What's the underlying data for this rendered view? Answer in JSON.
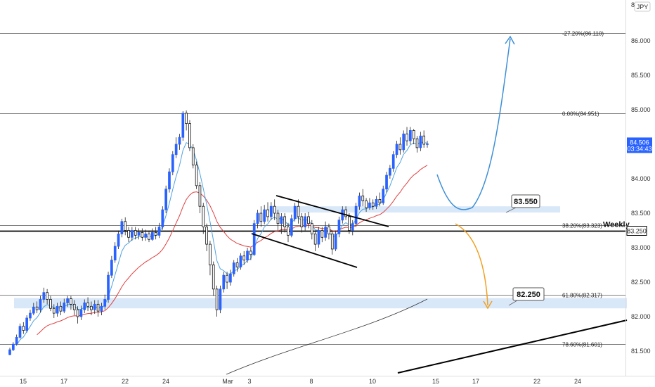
{
  "chart_data": {
    "type": "line",
    "currency": "JPY",
    "y_axis": {
      "min": 81.3,
      "max": 86.5,
      "ticks": [
        "81.500",
        "82.000",
        "82.500",
        "83.000",
        "83.500",
        "84.000",
        "84.500",
        "85.000",
        "85.500",
        "86.000"
      ]
    },
    "x_axis": {
      "ticks": [
        "15",
        "17",
        "22",
        "24",
        "Mar",
        "3",
        "8",
        "10",
        "15",
        "17",
        "22",
        "24"
      ]
    },
    "price_label": {
      "value": "84.506",
      "countdown": "03:34:43"
    },
    "fib_levels": [
      {
        "label": "-27.20%(86.110)",
        "price": 86.11
      },
      {
        "label": "0.00%(84.951)",
        "price": 84.951
      },
      {
        "label": "38.20%(83.323)",
        "price": 83.323
      },
      {
        "label": "61.80%(82.317)",
        "price": 82.317
      },
      {
        "label": "78.60%(81.601)",
        "price": 81.601
      }
    ],
    "weekly_level": {
      "label": "Weekly",
      "price": 83.25,
      "value_label": "83.250"
    },
    "zones": [
      {
        "label": "83.550",
        "price_low": 83.51,
        "price_high": 83.6
      },
      {
        "label": "82.250",
        "price_low": 82.12,
        "price_high": 82.27
      }
    ],
    "colors": {
      "up": "#2962ff",
      "down": "#111111",
      "ema_fast": "#4fa3e0",
      "ema_slow": "#e04040",
      "zone": "#cfe2f8",
      "bull_path": "#3d8fd6",
      "bear_path": "#f0a020",
      "price_label_bg": "#2962ff"
    },
    "candles": [
      [
        81.45,
        81.52,
        81.44,
        81.55
      ],
      [
        81.52,
        81.6,
        81.5,
        81.63
      ],
      [
        81.6,
        81.7,
        81.58,
        81.74
      ],
      [
        81.7,
        81.86,
        81.68,
        81.9
      ],
      [
        81.86,
        81.8,
        81.75,
        81.92
      ],
      [
        81.8,
        81.98,
        81.77,
        82.02
      ],
      [
        81.98,
        82.05,
        81.94,
        82.1
      ],
      [
        82.05,
        82.14,
        82.02,
        82.2
      ],
      [
        82.14,
        82.1,
        82.05,
        82.22
      ],
      [
        82.1,
        82.25,
        82.06,
        82.3
      ],
      [
        82.25,
        82.35,
        82.2,
        82.42
      ],
      [
        82.35,
        82.25,
        82.18,
        82.4
      ],
      [
        82.25,
        82.12,
        82.08,
        82.3
      ],
      [
        82.12,
        82.05,
        81.98,
        82.18
      ],
      [
        82.05,
        82.15,
        82.0,
        82.2
      ],
      [
        82.15,
        82.08,
        82.02,
        82.22
      ],
      [
        82.08,
        82.2,
        82.05,
        82.26
      ],
      [
        82.2,
        82.26,
        82.14,
        82.3
      ],
      [
        82.26,
        82.18,
        82.1,
        82.3
      ],
      [
        82.18,
        82.1,
        82.02,
        82.24
      ],
      [
        82.1,
        82.0,
        81.9,
        82.15
      ],
      [
        82.0,
        82.1,
        81.95,
        82.16
      ],
      [
        82.1,
        82.2,
        82.05,
        82.25
      ],
      [
        82.2,
        82.15,
        82.08,
        82.28
      ],
      [
        82.15,
        82.1,
        82.02,
        82.22
      ],
      [
        82.1,
        82.18,
        82.04,
        82.24
      ],
      [
        82.18,
        82.08,
        82.0,
        82.24
      ],
      [
        82.08,
        82.15,
        82.02,
        82.2
      ],
      [
        82.15,
        82.25,
        82.1,
        82.32
      ],
      [
        82.25,
        82.6,
        82.2,
        82.65
      ],
      [
        82.6,
        82.82,
        82.56,
        82.88
      ],
      [
        82.82,
        83.02,
        82.78,
        83.08
      ],
      [
        83.02,
        83.2,
        82.98,
        83.25
      ],
      [
        83.2,
        83.38,
        83.15,
        83.42
      ],
      [
        83.38,
        83.25,
        83.18,
        83.44
      ],
      [
        83.25,
        83.15,
        83.08,
        83.3
      ],
      [
        83.15,
        83.25,
        83.1,
        83.3
      ],
      [
        83.25,
        83.18,
        83.12,
        83.3
      ],
      [
        83.18,
        83.22,
        83.12,
        83.28
      ],
      [
        83.22,
        83.15,
        83.1,
        83.28
      ],
      [
        83.15,
        83.2,
        83.1,
        83.26
      ],
      [
        83.2,
        83.12,
        83.08,
        83.25
      ],
      [
        83.12,
        83.22,
        83.1,
        83.28
      ],
      [
        83.22,
        83.18,
        83.12,
        83.3
      ],
      [
        83.18,
        83.3,
        83.14,
        83.36
      ],
      [
        83.3,
        83.55,
        83.26,
        83.6
      ],
      [
        83.55,
        83.85,
        83.5,
        83.9
      ],
      [
        83.85,
        84.1,
        83.8,
        84.15
      ],
      [
        84.1,
        84.35,
        84.05,
        84.4
      ],
      [
        84.35,
        84.5,
        84.3,
        84.6
      ],
      [
        84.5,
        84.6,
        84.42,
        84.65
      ],
      [
        84.6,
        84.95,
        84.55,
        84.98
      ],
      [
        84.95,
        84.8,
        84.7,
        84.99
      ],
      [
        84.8,
        84.45,
        84.4,
        84.85
      ],
      [
        84.45,
        84.2,
        84.15,
        84.5
      ],
      [
        84.2,
        83.9,
        83.85,
        84.25
      ],
      [
        83.9,
        83.6,
        83.5,
        83.95
      ],
      [
        83.6,
        83.3,
        83.2,
        83.65
      ],
      [
        83.3,
        83.05,
        82.95,
        83.35
      ],
      [
        83.05,
        82.75,
        82.6,
        83.1
      ],
      [
        82.75,
        82.4,
        82.3,
        82.8
      ],
      [
        82.4,
        82.1,
        82.0,
        82.45
      ],
      [
        82.1,
        82.4,
        82.05,
        82.45
      ],
      [
        82.4,
        82.6,
        82.35,
        82.65
      ],
      [
        82.6,
        82.5,
        82.4,
        82.65
      ],
      [
        82.5,
        82.62,
        82.45,
        82.68
      ],
      [
        82.62,
        82.78,
        82.58,
        82.82
      ],
      [
        82.78,
        82.72,
        82.65,
        82.85
      ],
      [
        82.72,
        82.88,
        82.68,
        82.92
      ],
      [
        82.88,
        82.82,
        82.75,
        82.95
      ],
      [
        82.82,
        82.95,
        82.78,
        83.0
      ],
      [
        82.95,
        82.9,
        82.82,
        83.0
      ],
      [
        82.9,
        83.35,
        82.88,
        83.4
      ],
      [
        83.35,
        83.5,
        83.28,
        83.55
      ],
      [
        83.5,
        83.38,
        83.3,
        83.6
      ],
      [
        83.38,
        83.55,
        83.34,
        83.62
      ],
      [
        83.55,
        83.45,
        83.38,
        83.66
      ],
      [
        83.45,
        83.6,
        83.4,
        83.66
      ],
      [
        83.6,
        83.5,
        83.4,
        83.7
      ],
      [
        83.5,
        83.35,
        83.25,
        83.55
      ],
      [
        83.35,
        83.45,
        83.2,
        83.5
      ],
      [
        83.45,
        83.3,
        83.22,
        83.5
      ],
      [
        83.3,
        83.18,
        83.08,
        83.36
      ],
      [
        83.18,
        83.42,
        83.15,
        83.48
      ],
      [
        83.42,
        83.6,
        83.38,
        83.65
      ],
      [
        83.6,
        83.45,
        83.35,
        83.7
      ],
      [
        83.45,
        83.3,
        83.22,
        83.5
      ],
      [
        83.3,
        83.45,
        83.25,
        83.5
      ],
      [
        83.45,
        83.35,
        83.28,
        83.52
      ],
      [
        83.35,
        83.2,
        83.12,
        83.4
      ],
      [
        83.2,
        83.05,
        82.95,
        83.25
      ],
      [
        83.05,
        83.25,
        83.0,
        83.3
      ],
      [
        83.25,
        83.15,
        83.08,
        83.3
      ],
      [
        83.15,
        83.3,
        83.1,
        83.38
      ],
      [
        83.3,
        83.2,
        83.12,
        83.35
      ],
      [
        83.2,
        82.98,
        82.9,
        83.25
      ],
      [
        82.98,
        83.2,
        82.95,
        83.25
      ],
      [
        83.2,
        83.4,
        83.15,
        83.45
      ],
      [
        83.4,
        83.55,
        83.35,
        83.6
      ],
      [
        83.55,
        83.45,
        83.4,
        83.6
      ],
      [
        83.45,
        83.25,
        83.2,
        83.5
      ],
      [
        83.25,
        83.35,
        83.18,
        83.4
      ],
      [
        83.35,
        83.6,
        83.3,
        83.65
      ],
      [
        83.6,
        83.75,
        83.55,
        83.8
      ],
      [
        83.75,
        83.68,
        83.6,
        83.85
      ],
      [
        83.68,
        83.58,
        83.52,
        83.72
      ],
      [
        83.58,
        83.65,
        83.55,
        83.72
      ],
      [
        83.65,
        83.6,
        83.55,
        83.7
      ],
      [
        83.6,
        83.7,
        83.56,
        83.75
      ],
      [
        83.7,
        83.65,
        83.6,
        83.8
      ],
      [
        83.65,
        83.85,
        83.62,
        83.9
      ],
      [
        83.85,
        84.05,
        83.8,
        84.1
      ],
      [
        84.05,
        84.15,
        84.0,
        84.2
      ],
      [
        84.15,
        84.35,
        84.1,
        84.4
      ],
      [
        84.35,
        84.5,
        84.3,
        84.55
      ],
      [
        84.5,
        84.42,
        84.35,
        84.6
      ],
      [
        84.42,
        84.65,
        84.38,
        84.7
      ],
      [
        84.65,
        84.55,
        84.48,
        84.75
      ],
      [
        84.55,
        84.7,
        84.5,
        84.75
      ],
      [
        84.7,
        84.58,
        84.5,
        84.72
      ],
      [
        84.58,
        84.45,
        84.38,
        84.62
      ],
      [
        84.45,
        84.62,
        84.4,
        84.68
      ],
      [
        84.62,
        84.5,
        84.45,
        84.7
      ],
      [
        84.5,
        84.506,
        84.45,
        84.55
      ]
    ]
  }
}
